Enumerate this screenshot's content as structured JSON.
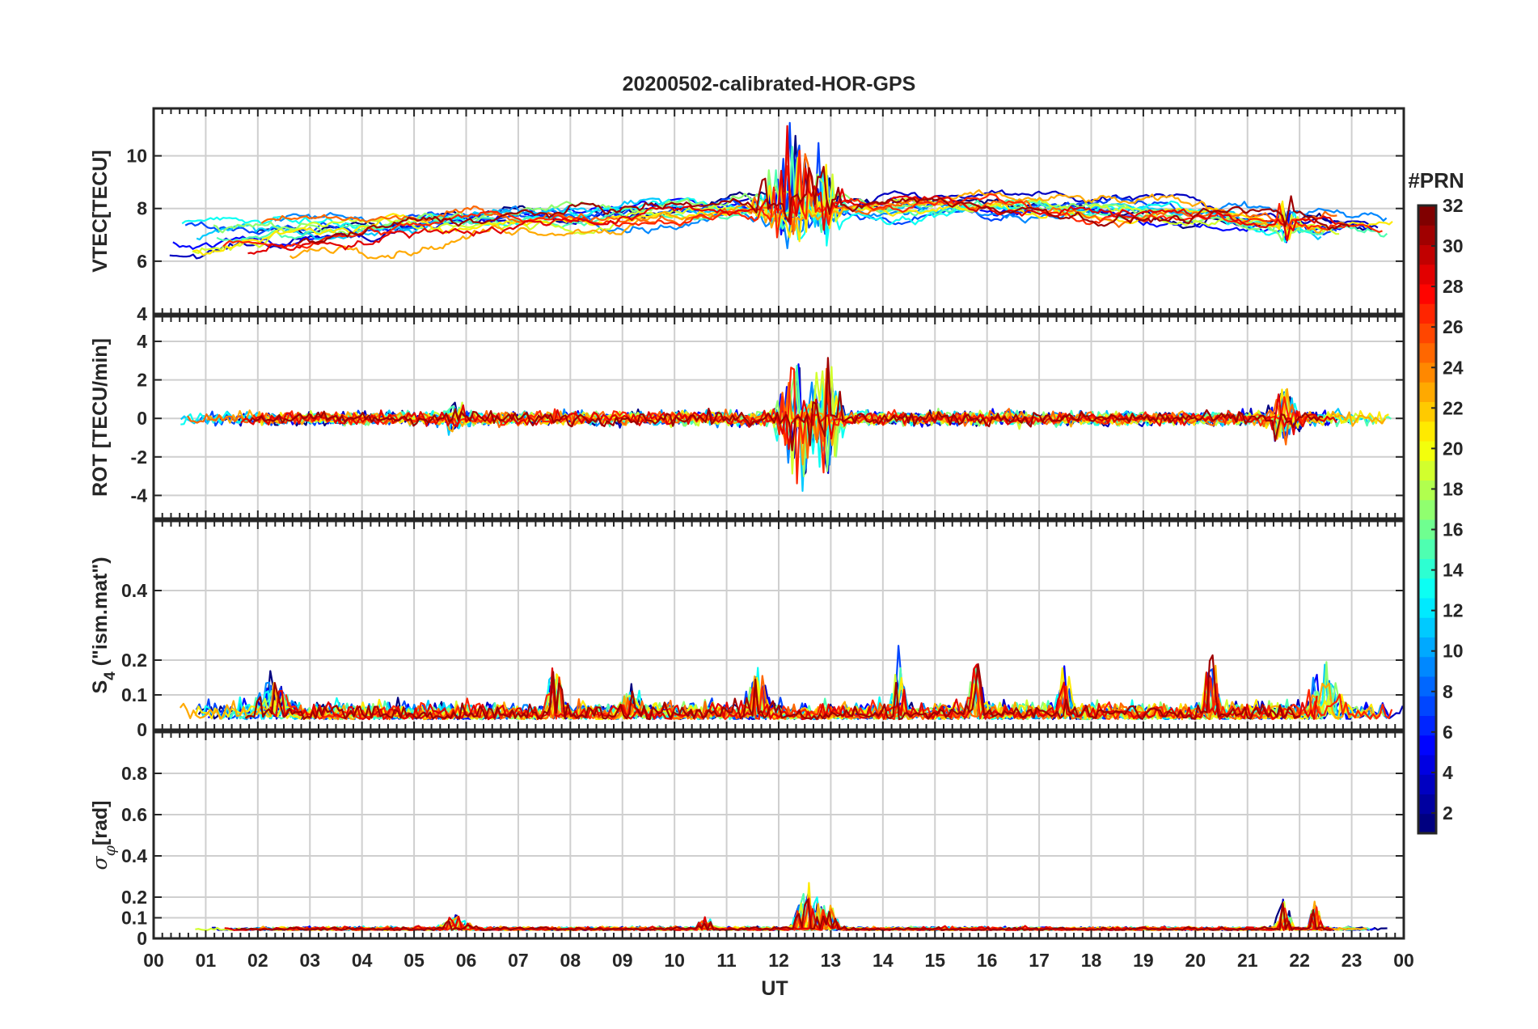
{
  "figure": {
    "title": "20200502-calibrated-HOR-GPS",
    "xlabel": "UT",
    "colorbar_title": "#PRN"
  },
  "chart_data": [
    {
      "type": "line",
      "name": "vtec",
      "ylabel": "VTEC[TECU]",
      "ylim": [
        4,
        11.8
      ],
      "yticks": [
        4,
        6,
        8,
        10
      ],
      "grid": true,
      "baseline": 6.8,
      "noise": 0.55,
      "events": [
        {
          "t": 12.2,
          "w": 0.8,
          "amp": 3.2
        },
        {
          "t": 12.9,
          "w": 0.4,
          "amp": 2.6
        },
        {
          "t": 21.75,
          "w": 0.25,
          "amp": 1.6
        }
      ]
    },
    {
      "type": "line",
      "name": "rot",
      "ylabel": "ROT [TECU/min]",
      "ylim": [
        -5.2,
        5.3
      ],
      "yticks": [
        -4,
        -2,
        0,
        2,
        4
      ],
      "grid": true,
      "baseline": 0,
      "noise": 0.25,
      "events": [
        {
          "t": 12.4,
          "w": 0.55,
          "amp": 3.8
        },
        {
          "t": 12.95,
          "w": 0.35,
          "amp": 3.4
        },
        {
          "t": 21.7,
          "w": 0.4,
          "amp": 1.8
        },
        {
          "t": 5.8,
          "w": 0.3,
          "amp": 0.9
        }
      ]
    },
    {
      "type": "line",
      "name": "s4",
      "ylabel_main": "S",
      "ylabel_sub": "4",
      "ylabel_rest": " (\"ism.mat\")",
      "ylim": [
        0,
        0.6
      ],
      "yticks": [
        0,
        0.1,
        0.2,
        0.4
      ],
      "ytick_labels": [
        "0",
        "0.1",
        "0.2",
        "0.4"
      ],
      "grid": true,
      "baseline": 0.03,
      "noise": 0.03,
      "events": [
        {
          "t": 0.2,
          "w": 0.4,
          "amp": 0.12
        },
        {
          "t": 2.3,
          "w": 0.4,
          "amp": 0.13
        },
        {
          "t": 7.7,
          "w": 0.2,
          "amp": 0.22
        },
        {
          "t": 9.2,
          "w": 0.3,
          "amp": 0.1
        },
        {
          "t": 11.6,
          "w": 0.3,
          "amp": 0.14
        },
        {
          "t": 14.3,
          "w": 0.2,
          "amp": 0.18
        },
        {
          "t": 15.8,
          "w": 0.2,
          "amp": 0.17
        },
        {
          "t": 17.5,
          "w": 0.2,
          "amp": 0.17
        },
        {
          "t": 20.3,
          "w": 0.2,
          "amp": 0.22
        },
        {
          "t": 22.5,
          "w": 0.5,
          "amp": 0.15
        }
      ]
    },
    {
      "type": "line",
      "name": "sigma_phi",
      "ylabel_main": "σ",
      "ylabel_sub": "φ",
      "ylabel_rest": "[rad]",
      "ylim": [
        0,
        1.0
      ],
      "yticks": [
        0,
        0.1,
        0.2,
        0.4,
        0.6,
        0.8
      ],
      "ytick_labels": [
        "0",
        "0.1",
        "0.2",
        "0.4",
        "0.6",
        "0.8"
      ],
      "grid": true,
      "baseline": 0.04,
      "noise": 0.01,
      "events": [
        {
          "t": 12.6,
          "w": 0.4,
          "amp": 0.26
        },
        {
          "t": 13.0,
          "w": 0.2,
          "amp": 0.12
        },
        {
          "t": 21.7,
          "w": 0.2,
          "amp": 0.18
        },
        {
          "t": 22.3,
          "w": 0.15,
          "amp": 0.18
        },
        {
          "t": 10.6,
          "w": 0.2,
          "amp": 0.08
        },
        {
          "t": 5.8,
          "w": 0.4,
          "amp": 0.07
        }
      ]
    }
  ],
  "x_axis": {
    "xlim": [
      0,
      24
    ],
    "tick_labels": [
      "00",
      "01",
      "02",
      "03",
      "04",
      "05",
      "06",
      "07",
      "08",
      "09",
      "10",
      "11",
      "12",
      "13",
      "14",
      "15",
      "16",
      "17",
      "18",
      "19",
      "20",
      "21",
      "22",
      "23",
      "00"
    ]
  },
  "colorbar": {
    "range": [
      1,
      32
    ],
    "tick_values": [
      2,
      4,
      6,
      8,
      10,
      12,
      14,
      16,
      18,
      20,
      22,
      24,
      26,
      28,
      30,
      32
    ],
    "tick_labels": [
      "2",
      "4",
      "6",
      "8",
      "10",
      "12",
      "14",
      "16",
      "18",
      "20",
      "22",
      "24",
      "26",
      "28",
      "30",
      "32"
    ],
    "colormap": "jet"
  },
  "series_prns": [
    1,
    3,
    5,
    7,
    9,
    11,
    13,
    15,
    17,
    19,
    21,
    23,
    25,
    27,
    29,
    31
  ]
}
